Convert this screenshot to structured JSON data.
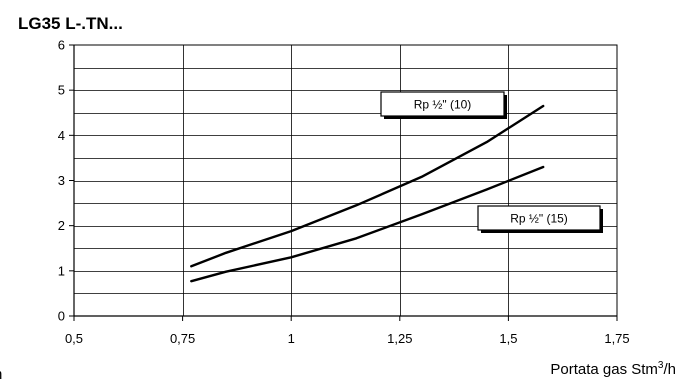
{
  "chart_data": {
    "type": "line",
    "title": "LG35 L-.TN...",
    "xlabel_left": "h",
    "xlabel_main": "Portata gas Stm",
    "xlabel_sup": "3",
    "xlabel_unit": "/h",
    "xlim": [
      0.5,
      1.75
    ],
    "ylim": [
      0,
      6
    ],
    "x_ticks": [
      {
        "value": 0.5,
        "label": "0,5"
      },
      {
        "value": 0.75,
        "label": "0,75"
      },
      {
        "value": 1.0,
        "label": "1"
      },
      {
        "value": 1.25,
        "label": "1,25"
      },
      {
        "value": 1.5,
        "label": "1,5"
      },
      {
        "value": 1.75,
        "label": "1,75"
      }
    ],
    "y_ticks": [
      {
        "value": 0,
        "label": "0"
      },
      {
        "value": 1,
        "label": "1"
      },
      {
        "value": 2,
        "label": "2"
      },
      {
        "value": 3,
        "label": "3"
      },
      {
        "value": 4,
        "label": "4"
      },
      {
        "value": 5,
        "label": "5"
      },
      {
        "value": 6,
        "label": "6"
      }
    ],
    "grid": true,
    "minor_gridlines_y": true,
    "series": [
      {
        "name": "Rp ½\" (10)",
        "x": [
          0.77,
          0.85,
          1.0,
          1.15,
          1.3,
          1.45,
          1.58
        ],
        "y": [
          1.1,
          1.4,
          1.88,
          2.45,
          3.08,
          3.85,
          4.65
        ]
      },
      {
        "name": "Rp ½\" (15)",
        "x": [
          0.77,
          0.85,
          1.0,
          1.15,
          1.3,
          1.45,
          1.58
        ],
        "y": [
          0.77,
          0.98,
          1.3,
          1.72,
          2.25,
          2.8,
          3.3
        ]
      }
    ],
    "colors": {
      "line": "#000000",
      "grid": "#000000",
      "background": "#ffffff"
    }
  }
}
